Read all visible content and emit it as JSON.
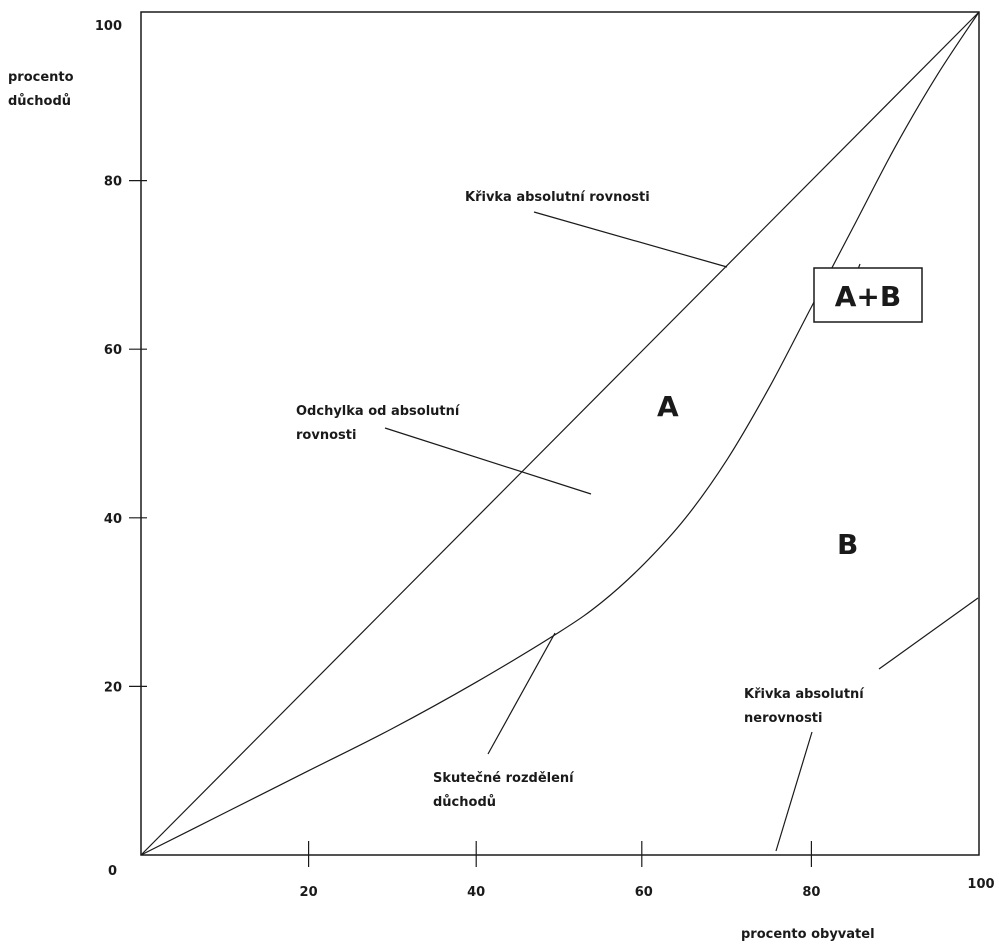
{
  "chart_data": {
    "type": "line",
    "title": "",
    "xlabel": "procento obyvatel",
    "ylabel_lines": [
      "procento",
      "důchodů"
    ],
    "xlim": [
      0,
      100
    ],
    "ylim": [
      0,
      100
    ],
    "x_ticks": [
      0,
      20,
      40,
      60,
      80,
      100
    ],
    "y_ticks": [
      0,
      20,
      40,
      60,
      80,
      100
    ],
    "grid": false,
    "series": [
      {
        "id": "equality",
        "x": [
          0,
          100
        ],
        "y": [
          0,
          100
        ]
      },
      {
        "id": "lorenz",
        "x": [
          0,
          10,
          20,
          30,
          40,
          50,
          55,
          60,
          65,
          70,
          75,
          80,
          85,
          90,
          95,
          100
        ],
        "y": [
          0,
          5,
          10,
          15,
          20.5,
          26.5,
          30,
          34.5,
          40,
          47,
          55.5,
          65,
          74.5,
          84,
          92.5,
          100
        ]
      }
    ],
    "annotations": {
      "equality_label": "Křivka absolutní rovnosti",
      "deviation_label": [
        "Odchylka od absolutní",
        "rovnosti"
      ],
      "actual_label": [
        "Skutečné rozdělení",
        "důchodů"
      ],
      "inequality_label": [
        "Křivka absolutní",
        "nerovnosti"
      ],
      "region_a": "A",
      "region_b": "B",
      "region_ab": "A+B"
    }
  }
}
